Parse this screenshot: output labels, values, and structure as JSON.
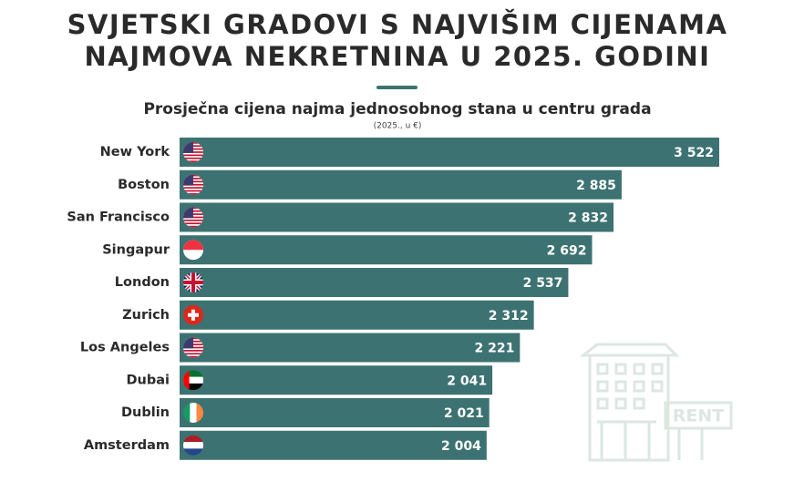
{
  "chart_data": {
    "type": "bar",
    "orientation": "horizontal",
    "title": [
      "SVJETSKI GRADOVI S NAJVIŠIM CIJENAMA",
      "NAJMOVA NEKRETNINA U 2025. GODINI"
    ],
    "subtitle": "Prosječna cijena najma jednosobnog stana u centru grada",
    "note": "(2025., u €)",
    "annotation": "RENT",
    "categories": [
      "New York",
      "Boston",
      "San Francisco",
      "Singapur",
      "London",
      "Zurich",
      "Los Angeles",
      "Dubai",
      "Dublin",
      "Amsterdam"
    ],
    "values": [
      3522,
      2885,
      2832,
      2692,
      2537,
      2312,
      2221,
      2041,
      2021,
      2004
    ],
    "value_labels": [
      "3 522",
      "2 885",
      "2 832",
      "2 692",
      "2 537",
      "2 312",
      "2 221",
      "2 041",
      "2 021",
      "2 004"
    ],
    "color": "#3d7272"
  }
}
